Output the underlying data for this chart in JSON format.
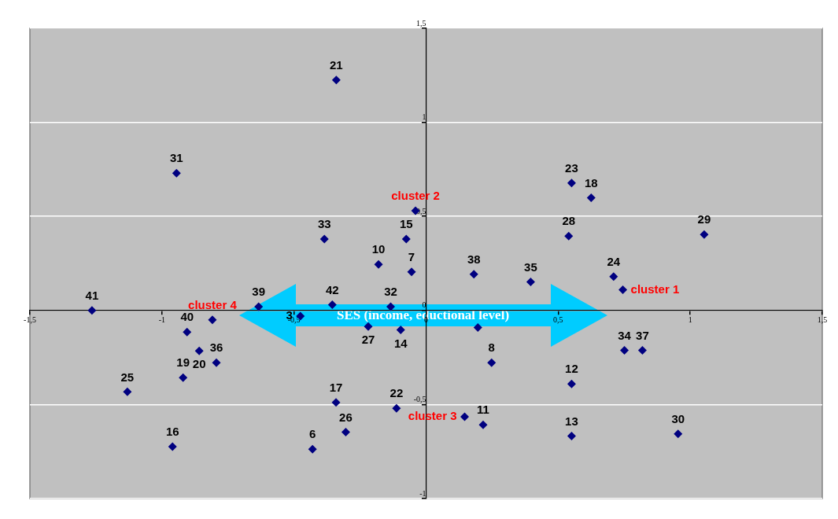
{
  "chart_data": {
    "type": "scatter",
    "marker": "diamond",
    "grid": "y",
    "legend": false,
    "xlim": [
      -1.5,
      1.5
    ],
    "ylim": [
      -1,
      1.5
    ],
    "xticks": [
      {
        "value": -1.5,
        "label": "-1,5"
      },
      -1,
      {
        "value": -0.5,
        "label": "-0,5"
      },
      0,
      {
        "value": 0.5,
        "label": "0,5"
      },
      1,
      {
        "value": 1.5,
        "label": "1,5"
      }
    ],
    "yticks": [
      -1,
      {
        "value": -0.5,
        "label": "-0,5"
      },
      0,
      {
        "value": 0.5,
        "label": "0,5"
      },
      1,
      {
        "value": 1.5,
        "label": "1,5"
      }
    ],
    "annotations": [
      "SES (income, eductional level)",
      {
        "text": "cluster 1",
        "x": 0.745,
        "y": 0.11
      },
      {
        "text": "cluster 2",
        "x": -0.04,
        "y": 0.53
      },
      {
        "text": "cluster 3",
        "x": 0.146,
        "y": -0.565
      },
      {
        "text": "cluster 4",
        "x": -0.809,
        "y": -0.05
      }
    ],
    "series": [
      {
        "color": "#000080",
        "x": [
          0.745,
          -0.04,
          0.146,
          -0.809,
          0.196
        ],
        "values": [
          0.11,
          0.53,
          -0.565,
          -0.05,
          -0.091
        ]
      },
      {
        "name": "41",
        "color": "#000080",
        "x": [
          -1.265
        ],
        "values": [
          0.0
        ]
      },
      {
        "name": "31",
        "color": "#000080",
        "x": [
          -0.945
        ],
        "values": [
          0.73
        ]
      },
      {
        "name": "21",
        "color": "#000080",
        "x": [
          -0.34
        ],
        "values": [
          1.225
        ]
      },
      {
        "name": "33",
        "color": "#000080",
        "x": [
          -0.385
        ],
        "values": [
          0.38
        ]
      },
      {
        "name": "15",
        "color": "#000080",
        "x": [
          -0.075
        ],
        "values": [
          0.38
        ]
      },
      {
        "name": "10",
        "color": "#000080",
        "x": [
          -0.18
        ],
        "values": [
          0.245
        ]
      },
      {
        "name": "7",
        "color": "#000080",
        "x": [
          -0.055
        ],
        "values": [
          0.205
        ]
      },
      {
        "name": "42",
        "color": "#000080",
        "x": [
          -0.355
        ],
        "values": [
          0.03
        ]
      },
      {
        "name": "3",
        "color": "#000080",
        "x": [
          -0.476
        ],
        "values": [
          -0.03
        ]
      },
      {
        "name": "32",
        "color": "#000080",
        "x": [
          -0.134
        ],
        "values": [
          0.02
        ]
      },
      {
        "name": "39",
        "color": "#000080",
        "x": [
          -0.634
        ],
        "values": [
          0.02
        ]
      },
      {
        "name": "40",
        "color": "#000080",
        "x": [
          -0.905
        ],
        "values": [
          -0.115
        ]
      },
      {
        "name": "20",
        "color": "#000080",
        "x": [
          -0.859
        ],
        "values": [
          -0.215
        ]
      },
      {
        "name": "36",
        "color": "#000080",
        "x": [
          -0.794
        ],
        "values": [
          -0.278
        ]
      },
      {
        "name": "25",
        "color": "#000080",
        "x": [
          -1.131
        ],
        "values": [
          -0.433
        ]
      },
      {
        "name": "19",
        "color": "#000080",
        "x": [
          -0.92
        ],
        "values": [
          -0.357
        ]
      },
      {
        "name": "16",
        "color": "#000080",
        "x": [
          -0.96
        ],
        "values": [
          -0.724
        ]
      },
      {
        "name": "17",
        "color": "#000080",
        "x": [
          -0.341
        ],
        "values": [
          -0.489
        ]
      },
      {
        "name": "22",
        "color": "#000080",
        "x": [
          -0.112
        ],
        "values": [
          -0.52
        ]
      },
      {
        "name": "26",
        "color": "#000080",
        "x": [
          -0.304
        ],
        "values": [
          -0.647
        ]
      },
      {
        "name": "6",
        "color": "#000080",
        "x": [
          -0.43
        ],
        "values": [
          -0.738
        ]
      },
      {
        "name": "27",
        "color": "#000080",
        "x": [
          -0.219
        ],
        "values": [
          -0.085
        ]
      },
      {
        "name": "14",
        "color": "#000080",
        "x": [
          -0.096
        ],
        "values": [
          -0.103
        ]
      },
      {
        "name": "23",
        "color": "#000080",
        "x": [
          0.551
        ],
        "values": [
          0.677
        ]
      },
      {
        "name": "18",
        "color": "#000080",
        "x": [
          0.625
        ],
        "values": [
          0.599
        ]
      },
      {
        "name": "28",
        "color": "#000080",
        "x": [
          0.54
        ],
        "values": [
          0.395
        ]
      },
      {
        "name": "29",
        "color": "#000080",
        "x": [
          1.053
        ],
        "values": [
          0.404
        ]
      },
      {
        "name": "38",
        "color": "#000080",
        "x": [
          0.181
        ],
        "values": [
          0.193
        ]
      },
      {
        "name": "35",
        "color": "#000080",
        "x": [
          0.396
        ],
        "values": [
          0.152
        ]
      },
      {
        "name": "24",
        "color": "#000080",
        "x": [
          0.71
        ],
        "values": [
          0.18
        ]
      },
      {
        "name": "34",
        "color": "#000080",
        "x": [
          0.751
        ],
        "values": [
          -0.212
        ]
      },
      {
        "name": "37",
        "color": "#000080",
        "x": [
          0.819
        ],
        "values": [
          -0.212
        ]
      },
      {
        "name": "8",
        "color": "#000080",
        "x": [
          0.248
        ],
        "values": [
          -0.278
        ]
      },
      {
        "name": "12",
        "color": "#000080",
        "x": [
          0.551
        ],
        "values": [
          -0.391
        ]
      },
      {
        "name": "11",
        "color": "#000080",
        "x": [
          0.216
        ],
        "values": [
          -0.608
        ]
      },
      {
        "name": "13",
        "color": "#000080",
        "x": [
          0.551
        ],
        "values": [
          -0.668
        ]
      },
      {
        "name": "30",
        "color": "#000080",
        "x": [
          0.954
        ],
        "values": [
          -0.656
        ]
      }
    ]
  }
}
